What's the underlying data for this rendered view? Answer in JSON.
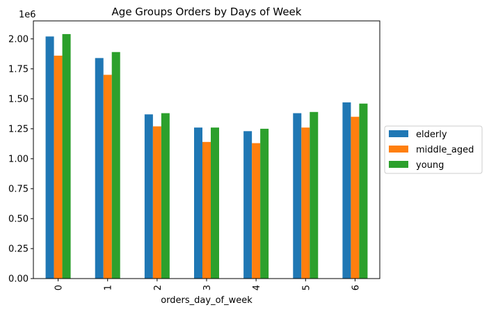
{
  "chart_data": {
    "type": "bar",
    "title": "Age Groups Orders by Days of Week",
    "xlabel": "orders_day_of_week",
    "ylabel": "",
    "scale_note": "1e6",
    "categories": [
      "0",
      "1",
      "2",
      "3",
      "4",
      "5",
      "6"
    ],
    "ylim": [
      0,
      2.15
    ],
    "yticks": [
      "0.00",
      "0.25",
      "0.50",
      "0.75",
      "1.00",
      "1.25",
      "1.50",
      "1.75",
      "2.00"
    ],
    "legend_position": "center-right-outside",
    "series": [
      {
        "name": "elderly",
        "color": "#1f77b4",
        "values": [
          2.02,
          1.84,
          1.37,
          1.26,
          1.23,
          1.38,
          1.47
        ]
      },
      {
        "name": "middle_aged",
        "color": "#ff7f0e",
        "values": [
          1.86,
          1.7,
          1.27,
          1.14,
          1.13,
          1.26,
          1.35
        ]
      },
      {
        "name": "young",
        "color": "#2ca02c",
        "values": [
          2.04,
          1.89,
          1.38,
          1.26,
          1.25,
          1.39,
          1.46
        ]
      }
    ]
  }
}
